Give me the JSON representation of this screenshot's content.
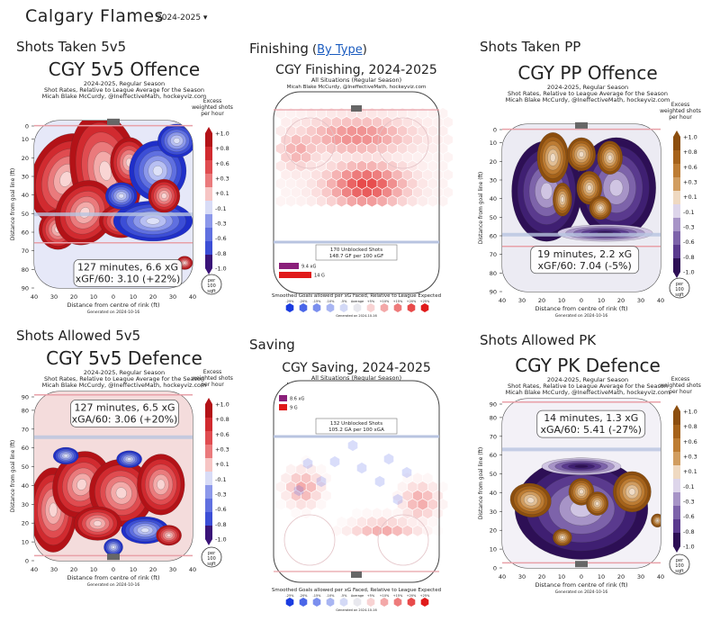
{
  "header": {
    "team": "Calgary Flames",
    "season_select": "2024-2025 ▾"
  },
  "sections": {
    "shots_taken_5v5": "Shots Taken 5v5",
    "finishing": "Finishing",
    "finishing_link": "By Type",
    "finishing_paren_open": " (",
    "finishing_paren_close": ")",
    "shots_taken_pp": "Shots Taken PP",
    "shots_allowed_5v5": "Shots Allowed 5v5",
    "saving": "Saving",
    "shots_allowed_pk": "Shots Allowed PK"
  },
  "heatmap_common": {
    "sub1": "2024-2025, Regular Season",
    "sub2": "Shot Rates, Relative to League Average for the Season",
    "sub3": "Micah Blake McCurdy, @IneffectiveMath, hockeyviz.com",
    "ylabel": "Distance from goal line (ft)",
    "xlabel": "Distance from centre of rink (ft)",
    "legend_title_1": "Excess",
    "legend_title_2": "weighted shots",
    "legend_title_3": "per hour",
    "legend_ticks": [
      "+1.0",
      "+0.8",
      "+0.6",
      "+0.3",
      "+0.1",
      "-0.1",
      "-0.3",
      "-0.6",
      "-0.8",
      "-1.0"
    ],
    "per_1": "per",
    "per_2": "100",
    "per_3": "sqft",
    "xticks": [
      "40",
      "30",
      "20",
      "10",
      "0",
      "10",
      "20",
      "30",
      "40"
    ],
    "yticks_top": [
      "0",
      "10",
      "20",
      "30",
      "40",
      "50",
      "60",
      "70",
      "80",
      "90"
    ],
    "yticks_bottom": [
      "90",
      "80",
      "70",
      "60",
      "50",
      "40",
      "30",
      "20",
      "10",
      "0"
    ]
  },
  "offence": {
    "title": "CGY 5v5 Offence",
    "stat1": "127 minutes, 6.6 xG",
    "stat2": "xGF/60: 3.10 (+22%)",
    "generated": "Generated on 2024-10-16"
  },
  "pp": {
    "title": "CGY PP Offence",
    "stat1": "19 minutes, 2.2 xG",
    "stat2": "xGF/60: 7.04 (-5%)",
    "generated": "Generated on 2024-10-16"
  },
  "defence": {
    "title": "CGY 5v5 Defence",
    "stat1": "127 minutes, 6.5 xG",
    "stat2": "xGA/60: 3.06 (+20%)",
    "generated": "Generated on 2024-10-16"
  },
  "pk": {
    "title": "CGY PK Defence",
    "stat1": "14 minutes, 1.3 xG",
    "stat2": "xGA/60: 5.41 (-27%)",
    "generated": "Generated on 2024-10-16"
  },
  "finishing_chart": {
    "title": "CGY Finishing, 2024-2025",
    "sub1": "All Situations (Regular Season)",
    "sub2": "Micah Blake McCurdy, @IneffectiveMath, hockeyviz.com",
    "box1": "170 Unblocked Shots",
    "box2": "148.7 GF per 100 xGF",
    "bar1_label": "9.4 xG",
    "bar2_label": "14 G",
    "footer": "Smoothed Goals allowed per xG Faced, Relative to League Expected",
    "generated": "Generated on 2024-10-16"
  },
  "saving_chart": {
    "title": "CGY Saving, 2024-2025",
    "sub1": "All Situations (Regular Season)",
    "sub2": "Micah Blake McCurdy, @IneffectiveMath, hockeyviz.com",
    "box1": "132 Unblocked Shots",
    "box2": "105.2 GA per 100 xGA",
    "leg1_label": "8.6 xG",
    "leg2_label": "9 G",
    "footer": "Smoothed Goals allowed per xG Faced, Relative to League Expected",
    "generated": "Generated on 2024-10-16"
  },
  "hex_legend": {
    "labels": [
      "-25%",
      "-20%",
      "-15%",
      "-10%",
      "-5%",
      "Average",
      "+5%",
      "+10%",
      "+15%",
      "+20%",
      "+25%"
    ],
    "colors": [
      "#1a3be0",
      "#4a66e8",
      "#7b8fee",
      "#a8b5f2",
      "#d3d9f6",
      "#e8e8ee",
      "#f8d3d3",
      "#f3a8a8",
      "#ee7b7b",
      "#e84a4a",
      "#e01a1a"
    ]
  },
  "colors": {
    "red": "#c0121b",
    "blue": "#1f2fc9",
    "brown": "#8c4e0e",
    "purple": "#3d1a66",
    "rink_line_red": "#e8a0a8",
    "rink_line_blue": "#b8c4e0",
    "net": "#666666"
  },
  "chart_data": [
    {
      "type": "heatmap",
      "title": "CGY 5v5 Offence",
      "value_range": [
        -1.0,
        1.0
      ],
      "unit": "Excess weighted shots per hour per 100 sqft",
      "xlim": [
        -40,
        40
      ],
      "ylim": [
        0,
        90
      ]
    },
    {
      "type": "heatmap",
      "title": "CGY Finishing, 2024-2025",
      "unblocked_shots": 170,
      "gf_per_100_xgf": 148.7,
      "xg": 9.4,
      "goals": 14
    },
    {
      "type": "heatmap",
      "title": "CGY PP Offence",
      "value_range": [
        -1.0,
        1.0
      ],
      "xlim": [
        -40,
        40
      ],
      "ylim": [
        0,
        90
      ]
    },
    {
      "type": "heatmap",
      "title": "CGY 5v5 Defence",
      "value_range": [
        -1.0,
        1.0
      ],
      "xlim": [
        -40,
        40
      ],
      "ylim": [
        0,
        90
      ]
    },
    {
      "type": "heatmap",
      "title": "CGY Saving, 2024-2025",
      "unblocked_shots": 132,
      "ga_per_100_xga": 105.2,
      "xg": 8.6,
      "goals": 9
    },
    {
      "type": "heatmap",
      "title": "CGY PK Defence",
      "value_range": [
        -1.0,
        1.0
      ],
      "xlim": [
        -40,
        40
      ],
      "ylim": [
        0,
        90
      ]
    }
  ]
}
